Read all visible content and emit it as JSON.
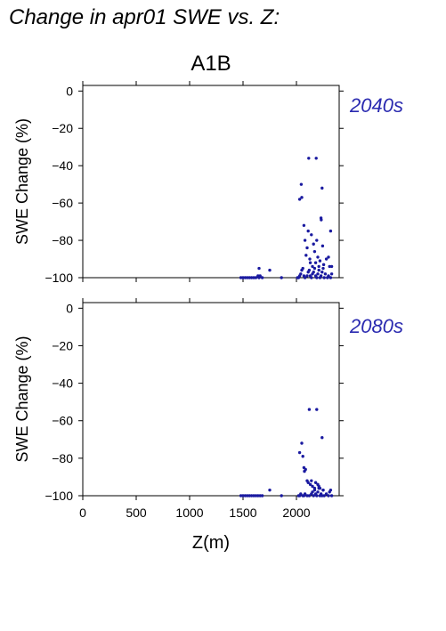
{
  "figure": {
    "title": "Change in apr01 SWE vs. Z:",
    "scenario": "A1B",
    "xlabel": "Z(m)"
  },
  "colors": {
    "points": "#1a1aa0",
    "period_label": "#2a2ab0",
    "axis": "#000000"
  },
  "chart_data": [
    {
      "type": "scatter",
      "panel_label": "2040s",
      "xlabel": "",
      "ylabel": "SWE Change (%)",
      "xlim": [
        0,
        2400
      ],
      "ylim": [
        -100,
        3
      ],
      "x_ticks": [
        0,
        500,
        1000,
        1500,
        2000
      ],
      "y_ticks": [
        0,
        -20,
        -40,
        -60,
        -80,
        -100
      ],
      "x_tick_labels_shown": false,
      "series": [
        {
          "points": [
            [
              1480,
              -100
            ],
            [
              1500,
              -100
            ],
            [
              1520,
              -100
            ],
            [
              1540,
              -100
            ],
            [
              1560,
              -100
            ],
            [
              1580,
              -100
            ],
            [
              1600,
              -100
            ],
            [
              1620,
              -100
            ],
            [
              1640,
              -99
            ],
            [
              1650,
              -100
            ],
            [
              1660,
              -99
            ],
            [
              1680,
              -100
            ],
            [
              1650,
              -95
            ],
            [
              1750,
              -96
            ],
            [
              1860,
              -100
            ],
            [
              2010,
              -100
            ],
            [
              2020,
              -100
            ],
            [
              2030,
              -99
            ],
            [
              2040,
              -98
            ],
            [
              2050,
              -96
            ],
            [
              2060,
              -95
            ],
            [
              2070,
              -99
            ],
            [
              2080,
              -100
            ],
            [
              2100,
              -99
            ],
            [
              2110,
              -97
            ],
            [
              2120,
              -96
            ],
            [
              2130,
              -99
            ],
            [
              2140,
              -100
            ],
            [
              2150,
              -98
            ],
            [
              2160,
              -97
            ],
            [
              2170,
              -95
            ],
            [
              2180,
              -99
            ],
            [
              2190,
              -100
            ],
            [
              2200,
              -98
            ],
            [
              2210,
              -96
            ],
            [
              2220,
              -100
            ],
            [
              2230,
              -99
            ],
            [
              2240,
              -97
            ],
            [
              2250,
              -95
            ],
            [
              2260,
              -100
            ],
            [
              2270,
              -98
            ],
            [
              2290,
              -100
            ],
            [
              2300,
              -99
            ],
            [
              2320,
              -100
            ],
            [
              2330,
              -98
            ],
            [
              2030,
              -58
            ],
            [
              2050,
              -57
            ],
            [
              2045,
              -50
            ],
            [
              2070,
              -72
            ],
            [
              2080,
              -80
            ],
            [
              2090,
              -88
            ],
            [
              2100,
              -84
            ],
            [
              2110,
              -75
            ],
            [
              2115,
              -36
            ],
            [
              2125,
              -90
            ],
            [
              2130,
              -92
            ],
            [
              2140,
              -77
            ],
            [
              2150,
              -94
            ],
            [
              2160,
              -82
            ],
            [
              2170,
              -86
            ],
            [
              2180,
              -92
            ],
            [
              2185,
              -36
            ],
            [
              2190,
              -80
            ],
            [
              2200,
              -89
            ],
            [
              2210,
              -94
            ],
            [
              2220,
              -91
            ],
            [
              2230,
              -68
            ],
            [
              2232,
              -69
            ],
            [
              2240,
              -52
            ],
            [
              2245,
              -83
            ],
            [
              2255,
              -93
            ],
            [
              2280,
              -90
            ],
            [
              2300,
              -89
            ],
            [
              2310,
              -94
            ],
            [
              2320,
              -75
            ],
            [
              2330,
              -94
            ]
          ]
        }
      ]
    },
    {
      "type": "scatter",
      "panel_label": "2080s",
      "xlabel": "Z(m)",
      "ylabel": "SWE Change (%)",
      "xlim": [
        0,
        2400
      ],
      "ylim": [
        -100,
        3
      ],
      "x_ticks": [
        0,
        500,
        1000,
        1500,
        2000
      ],
      "y_ticks": [
        0,
        -20,
        -40,
        -60,
        -80,
        -100
      ],
      "x_tick_labels_shown": true,
      "series": [
        {
          "points": [
            [
              1480,
              -100
            ],
            [
              1500,
              -100
            ],
            [
              1520,
              -100
            ],
            [
              1540,
              -100
            ],
            [
              1560,
              -100
            ],
            [
              1580,
              -100
            ],
            [
              1600,
              -100
            ],
            [
              1620,
              -100
            ],
            [
              1640,
              -100
            ],
            [
              1660,
              -100
            ],
            [
              1680,
              -100
            ],
            [
              1750,
              -97
            ],
            [
              1860,
              -100
            ],
            [
              2020,
              -100
            ],
            [
              2030,
              -100
            ],
            [
              2040,
              -99
            ],
            [
              2060,
              -100
            ],
            [
              2070,
              -100
            ],
            [
              2080,
              -99
            ],
            [
              2100,
              -100
            ],
            [
              2120,
              -100
            ],
            [
              2140,
              -99
            ],
            [
              2150,
              -98
            ],
            [
              2160,
              -100
            ],
            [
              2170,
              -97
            ],
            [
              2180,
              -99
            ],
            [
              2190,
              -100
            ],
            [
              2200,
              -98
            ],
            [
              2210,
              -96
            ],
            [
              2220,
              -100
            ],
            [
              2230,
              -99
            ],
            [
              2240,
              -100
            ],
            [
              2250,
              -97
            ],
            [
              2260,
              -100
            ],
            [
              2280,
              -99
            ],
            [
              2300,
              -100
            ],
            [
              2310,
              -98
            ],
            [
              2320,
              -97
            ],
            [
              2330,
              -100
            ],
            [
              2030,
              -77
            ],
            [
              2050,
              -72
            ],
            [
              2060,
              -79
            ],
            [
              2070,
              -85
            ],
            [
              2075,
              -87
            ],
            [
              2085,
              -86
            ],
            [
              2100,
              -92
            ],
            [
              2110,
              -93
            ],
            [
              2120,
              -54
            ],
            [
              2130,
              -94
            ],
            [
              2140,
              -92
            ],
            [
              2150,
              -95
            ],
            [
              2170,
              -96
            ],
            [
              2180,
              -93
            ],
            [
              2190,
              -54
            ],
            [
              2200,
              -94
            ],
            [
              2210,
              -95
            ],
            [
              2220,
              -96
            ],
            [
              2240,
              -69
            ],
            [
              2250,
              -97
            ]
          ]
        }
      ]
    }
  ]
}
